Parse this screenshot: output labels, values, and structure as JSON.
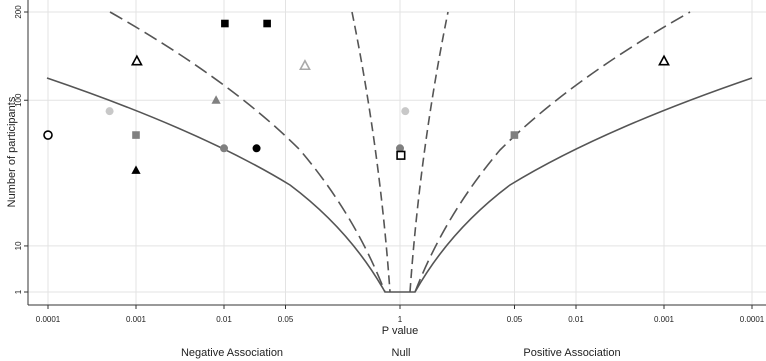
{
  "chart_data": {
    "type": "scatter",
    "xlabel": "P value",
    "ylabel": "Number of participants",
    "annotations": [
      "Negative Association",
      "Null",
      "Positive Association"
    ],
    "xlim": [
      -4,
      4
    ],
    "xticks": [
      {
        "value": -4,
        "label": "0.0001"
      },
      {
        "value": -3,
        "label": "0.001"
      },
      {
        "value": -2,
        "label": "0.01"
      },
      {
        "value": -1.301,
        "label": "0.05"
      },
      {
        "value": 0,
        "label": "1"
      },
      {
        "value": 1.301,
        "label": "0.05"
      },
      {
        "value": 2,
        "label": "0.01"
      },
      {
        "value": 3,
        "label": "0.001"
      },
      {
        "value": 4,
        "label": "0.0001"
      }
    ],
    "ylim": [
      1,
      200
    ],
    "yticks": [
      1,
      10,
      100,
      200
    ],
    "yscale": "sqrt",
    "grid": true,
    "series": [
      {
        "marker": "circle",
        "color": "#000000",
        "filled": false,
        "x": [
          -4.0
        ],
        "values": [
          70
        ]
      },
      {
        "marker": "circle",
        "color": "#c8c8c8",
        "filled": true,
        "x": [
          -3.3,
          0.06
        ],
        "values": [
          90,
          90
        ]
      },
      {
        "marker": "triangle",
        "color": "#000000",
        "filled": false,
        "x": [
          -2.99,
          3
        ],
        "values": [
          140,
          140
        ]
      },
      {
        "marker": "square",
        "color": "#808080",
        "filled": true,
        "x": [
          -3,
          1.3
        ],
        "values": [
          70,
          70
        ]
      },
      {
        "marker": "triangle",
        "color": "#000000",
        "filled": true,
        "x": [
          -3
        ],
        "values": [
          45
        ]
      },
      {
        "marker": "triangle",
        "color": "#808080",
        "filled": true,
        "x": [
          -2.09
        ],
        "values": [
          100
        ]
      },
      {
        "marker": "square",
        "color": "#000000",
        "filled": true,
        "x": [
          -1.99,
          -1.51
        ],
        "values": [
          185,
          185
        ]
      },
      {
        "marker": "circle",
        "color": "#808080",
        "filled": true,
        "x": [
          -2,
          0
        ],
        "values": [
          60,
          60
        ]
      },
      {
        "marker": "circle",
        "color": "#000000",
        "filled": true,
        "x": [
          -1.63
        ],
        "values": [
          60
        ]
      },
      {
        "marker": "triangle",
        "color": "#aaaaaa",
        "filled": false,
        "x": [
          -1.08
        ],
        "values": [
          135
        ]
      },
      {
        "marker": "square",
        "color": "#000000",
        "filled": false,
        "x": [
          0.01
        ],
        "values": [
          55
        ]
      }
    ]
  }
}
